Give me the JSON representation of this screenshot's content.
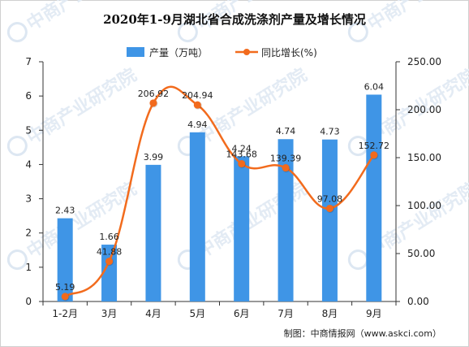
{
  "chart_data": {
    "type": "bar",
    "title": "2020年1-9月湖北省合成洗涤剂产量及增长情况",
    "categories": [
      "1-2月",
      "3月",
      "4月",
      "5月",
      "6月",
      "7月",
      "8月",
      "9月"
    ],
    "series": [
      {
        "name": "产量（万吨）",
        "type": "bar",
        "axis": "left",
        "color": "#3F95E6",
        "values": [
          2.43,
          1.66,
          3.99,
          4.94,
          4.24,
          4.74,
          4.73,
          6.04
        ],
        "labels": [
          "2.43",
          "1.66",
          "3.99",
          "4.94",
          "4.24",
          "4.74",
          "4.73",
          "6.04"
        ]
      },
      {
        "name": "同比增长(%)",
        "type": "line",
        "axis": "right",
        "color": "#F26B1D",
        "values": [
          5.19,
          41.88,
          206.92,
          204.94,
          143.68,
          139.39,
          97.08,
          152.72
        ],
        "labels": [
          "5.19",
          "41.88",
          "206.92",
          "204.94",
          "143.68",
          "139.39",
          "97.08",
          "152.72"
        ]
      }
    ],
    "y_left": {
      "min": 0,
      "max": 7,
      "ticks": [
        "0",
        "1",
        "2",
        "3",
        "4",
        "5",
        "6",
        "7"
      ]
    },
    "y_right": {
      "min": 0,
      "max": 250,
      "ticks": [
        "0.00",
        "50.00",
        "100.00",
        "150.00",
        "200.00",
        "250.00"
      ]
    },
    "legend_position": "top",
    "grid": false,
    "source": "制图：中商情报网（www.askci.com）",
    "watermark": "中商产业研究院"
  }
}
